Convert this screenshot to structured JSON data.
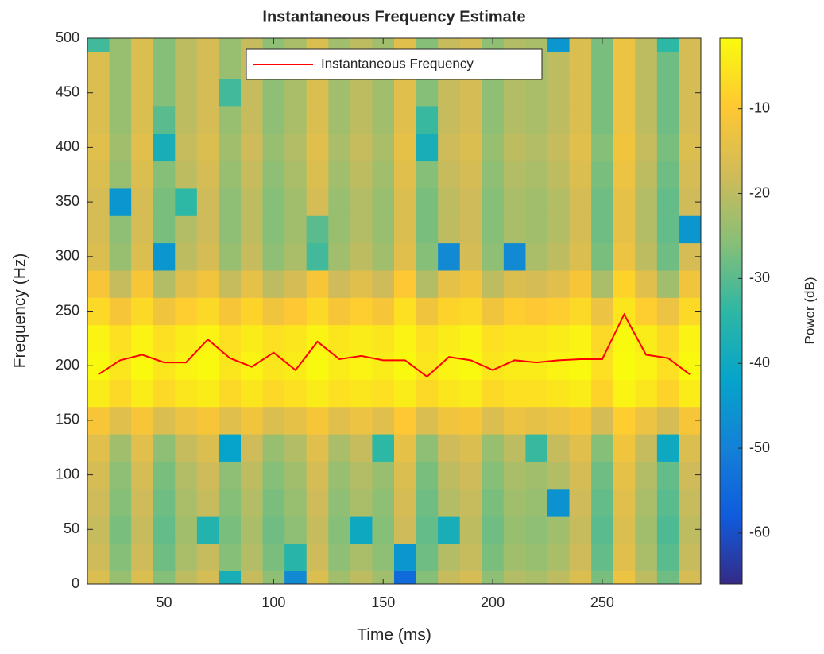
{
  "chart_data": {
    "type": "heatmap",
    "title": "Instantaneous Frequency Estimate",
    "x_label": "Time (ms)",
    "y_label": "Frequency (Hz)",
    "colorbar_label": "Power (dB)",
    "x": [
      20,
      30,
      40,
      50,
      60,
      70,
      80,
      90,
      100,
      110,
      120,
      130,
      140,
      150,
      160,
      170,
      180,
      190,
      200,
      210,
      220,
      230,
      240,
      250,
      260,
      270,
      280,
      290
    ],
    "y_bins": [
      0,
      25,
      50,
      75,
      100,
      125,
      150,
      175,
      200,
      225,
      250,
      275,
      300,
      325,
      350,
      375,
      400,
      425,
      450,
      475,
      500
    ],
    "z": [
      [
        -16,
        -24,
        -16,
        -26,
        -20,
        -17,
        -38,
        -19,
        -25,
        -48,
        -16,
        -23,
        -20,
        -23,
        -55,
        -26,
        -19,
        -17,
        -25,
        -21,
        -22,
        -20,
        -16,
        -27,
        -13,
        -20,
        -28,
        -17
      ],
      [
        -18,
        -26,
        -18,
        -28,
        -22,
        -19,
        -26,
        -21,
        -27,
        -35,
        -18,
        -25,
        -22,
        -25,
        -45,
        -28,
        -21,
        -19,
        -27,
        -23,
        -24,
        -22,
        -18,
        -29,
        -15,
        -22,
        -30,
        -19
      ],
      [
        -19,
        -27,
        -19,
        -29,
        -23,
        -36,
        -27,
        -22,
        -28,
        -25,
        -19,
        -26,
        -40,
        -26,
        -18,
        -29,
        -38,
        -20,
        -28,
        -24,
        -25,
        -23,
        -19,
        -30,
        -16,
        -23,
        -31,
        -20
      ],
      [
        -18,
        -26,
        -18,
        -28,
        -22,
        -19,
        -26,
        -21,
        -27,
        -24,
        -18,
        -25,
        -22,
        -25,
        -17,
        -28,
        -21,
        -19,
        -27,
        -23,
        -24,
        -46,
        -18,
        -29,
        -15,
        -22,
        -30,
        -19
      ],
      [
        -17,
        -25,
        -17,
        -27,
        -21,
        -18,
        -25,
        -20,
        -26,
        -23,
        -17,
        -24,
        -21,
        -24,
        -16,
        -27,
        -20,
        -18,
        -26,
        -22,
        -23,
        -21,
        -17,
        -28,
        -14,
        -21,
        -29,
        -18
      ],
      [
        -15,
        -23,
        -15,
        -25,
        -19,
        -16,
        -42,
        -18,
        -24,
        -21,
        -15,
        -22,
        -19,
        -34,
        -14,
        -25,
        -18,
        -16,
        -24,
        -20,
        -33,
        -19,
        -15,
        -26,
        -12,
        -19,
        -40,
        -16
      ],
      [
        -11,
        -15,
        -11,
        -16,
        -13,
        -11,
        -15,
        -12,
        -16,
        -14,
        -11,
        -15,
        -13,
        -15,
        -10,
        -16,
        -12,
        -11,
        -16,
        -13,
        -14,
        -13,
        -11,
        -17,
        -9,
        -13,
        -17,
        -11
      ],
      [
        -4,
        -7,
        -4,
        -7,
        -5,
        -4,
        -7,
        -5,
        -7,
        -6,
        -4,
        -6,
        -5,
        -6,
        -4,
        -7,
        -5,
        -4,
        -7,
        -6,
        -6,
        -5,
        -4,
        -8,
        -3,
        -5,
        -8,
        -4
      ],
      [
        -2,
        -5,
        -2,
        -5,
        -3,
        -2,
        -5,
        -3,
        -5,
        -4,
        -2,
        -4,
        -3,
        -4,
        -2,
        -5,
        -3,
        -2,
        -5,
        -4,
        -4,
        -3,
        -2,
        -6,
        -1,
        -3,
        -6,
        -2
      ],
      [
        -3,
        -6,
        -3,
        -6,
        -4,
        -3,
        -6,
        -4,
        -6,
        -5,
        -3,
        -5,
        -4,
        -5,
        -3,
        -6,
        -4,
        -3,
        -6,
        -5,
        -5,
        -4,
        -3,
        -7,
        -2,
        -4,
        -7,
        -3
      ],
      [
        -7,
        -11,
        -7,
        -12,
        -9,
        -7,
        -11,
        -8,
        -12,
        -10,
        -7,
        -11,
        -9,
        -11,
        -6,
        -12,
        -8,
        -7,
        -12,
        -9,
        -10,
        -9,
        -7,
        -13,
        -5,
        -9,
        -13,
        -7
      ],
      [
        -11,
        -19,
        -11,
        -21,
        -15,
        -12,
        -19,
        -14,
        -20,
        -17,
        -11,
        -18,
        -15,
        -18,
        -10,
        -21,
        -14,
        -12,
        -20,
        -16,
        -17,
        -15,
        -11,
        -22,
        -8,
        -15,
        -23,
        -12
      ],
      [
        -16,
        -24,
        -16,
        -45,
        -20,
        -17,
        -24,
        -19,
        -25,
        -22,
        -32,
        -23,
        -20,
        -23,
        -15,
        -26,
        -48,
        -17,
        -25,
        -48,
        -22,
        -20,
        -16,
        -27,
        -13,
        -20,
        -28,
        -17
      ],
      [
        -17,
        -25,
        -17,
        -27,
        -21,
        -18,
        -25,
        -20,
        -26,
        -23,
        -30,
        -24,
        -21,
        -24,
        -16,
        -27,
        -20,
        -18,
        -26,
        -22,
        -23,
        -21,
        -17,
        -28,
        -14,
        -21,
        -29,
        -45
      ],
      [
        -17,
        -45,
        -17,
        -27,
        -34,
        -18,
        -25,
        -20,
        -26,
        -23,
        -17,
        -24,
        -21,
        -24,
        -16,
        -27,
        -20,
        -18,
        -26,
        -22,
        -23,
        -21,
        -17,
        -28,
        -14,
        -21,
        -29,
        -18
      ],
      [
        -16,
        -24,
        -16,
        -26,
        -20,
        -17,
        -24,
        -19,
        -25,
        -22,
        -16,
        -23,
        -20,
        -23,
        -15,
        -26,
        -19,
        -17,
        -25,
        -21,
        -22,
        -20,
        -16,
        -27,
        -13,
        -20,
        -28,
        -17
      ],
      [
        -15,
        -23,
        -15,
        -38,
        -19,
        -16,
        -23,
        -18,
        -24,
        -21,
        -15,
        -22,
        -19,
        -22,
        -14,
        -38,
        -18,
        -16,
        -24,
        -20,
        -21,
        -19,
        -15,
        -26,
        -12,
        -19,
        -27,
        -16
      ],
      [
        -16,
        -24,
        -16,
        -30,
        -20,
        -17,
        -24,
        -19,
        -25,
        -22,
        -16,
        -23,
        -20,
        -23,
        -15,
        -33,
        -19,
        -17,
        -25,
        -21,
        -22,
        -20,
        -16,
        -27,
        -13,
        -20,
        -28,
        -17
      ],
      [
        -16,
        -24,
        -16,
        -26,
        -20,
        -17,
        -32,
        -19,
        -25,
        -22,
        -16,
        -23,
        -20,
        -23,
        -15,
        -26,
        -19,
        -17,
        -25,
        -21,
        -22,
        -20,
        -16,
        -27,
        -13,
        -20,
        -28,
        -17
      ],
      [
        -16,
        -24,
        -16,
        -26,
        -20,
        -17,
        -24,
        -19,
        -25,
        -22,
        -16,
        -23,
        -20,
        -23,
        -15,
        -26,
        -19,
        -17,
        -25,
        -21,
        -22,
        -20,
        -16,
        -27,
        -13,
        -20,
        -28,
        -17
      ],
      [
        -32,
        -24,
        -16,
        -26,
        -20,
        -17,
        -24,
        -19,
        -25,
        -22,
        -16,
        -23,
        -20,
        -23,
        -15,
        -26,
        -19,
        -17,
        -25,
        -21,
        -22,
        -45,
        -16,
        -27,
        -13,
        -20,
        -34,
        -17
      ]
    ],
    "series": [
      {
        "name": "Instantaneous Frequency",
        "color": "#ff0000",
        "values": [
          192,
          205,
          210,
          203,
          203,
          224,
          207,
          199,
          212,
          196,
          222,
          206,
          209,
          205,
          205,
          190,
          208,
          205,
          196,
          205,
          203,
          205,
          206,
          206,
          247,
          210,
          207,
          192
        ]
      }
    ],
    "xlim": [
      15,
      295
    ],
    "xticks": [
      50,
      100,
      150,
      200,
      250
    ],
    "ylim": [
      0,
      500
    ],
    "yticks": [
      0,
      50,
      100,
      150,
      200,
      250,
      300,
      350,
      400,
      450,
      500
    ],
    "clim": [
      -66,
      -1.7
    ],
    "cticks": [
      -10,
      -20,
      -30,
      -40,
      -50,
      -60
    ],
    "colormap": [
      "#352a87",
      "#0f5cdd",
      "#1481d6",
      "#06a4ca",
      "#2eb7a4",
      "#87bf77",
      "#d1bb59",
      "#fec832",
      "#f9fb0e"
    ],
    "legend": "north"
  }
}
